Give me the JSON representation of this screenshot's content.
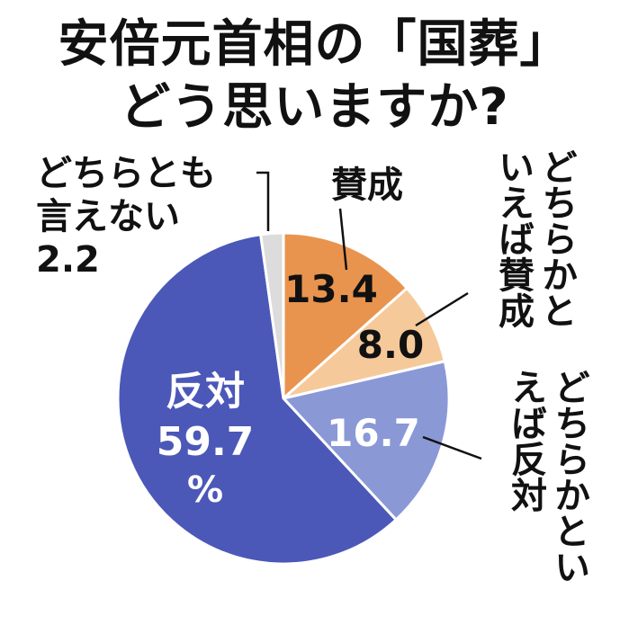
{
  "title_line1": "安倍元首相の「国葬」",
  "title_line2": "どう思いますか?",
  "chart_data": {
    "type": "pie",
    "start_angle": "12 o'clock",
    "direction": "clockwise",
    "series": [
      {
        "name": "賛成",
        "value": 13.4,
        "label": "13.4",
        "color": "#e8944f"
      },
      {
        "name": "どちらかといえば賛成",
        "value": 8.0,
        "label": "8.0",
        "color": "#f6c99a"
      },
      {
        "name": "どちらかといえば反対",
        "value": 16.7,
        "label": "16.7",
        "color": "#8a98d6"
      },
      {
        "name": "反対",
        "value": 59.7,
        "label": "59.7",
        "color": "#4b58b8"
      },
      {
        "name": "どちらとも言えない",
        "value": 2.2,
        "label": "2.2",
        "color": "#dcdcdc"
      }
    ],
    "category_labels": {
      "sansei": "賛成",
      "dochira_sansei": "どちらかといえば賛成",
      "dochira_hantai": "どちらかといえば反対",
      "hantai": "反対",
      "dochiratomo_line1": "どちらとも",
      "dochiratomo_line2": "言えない"
    },
    "percent_sign": "%"
  }
}
